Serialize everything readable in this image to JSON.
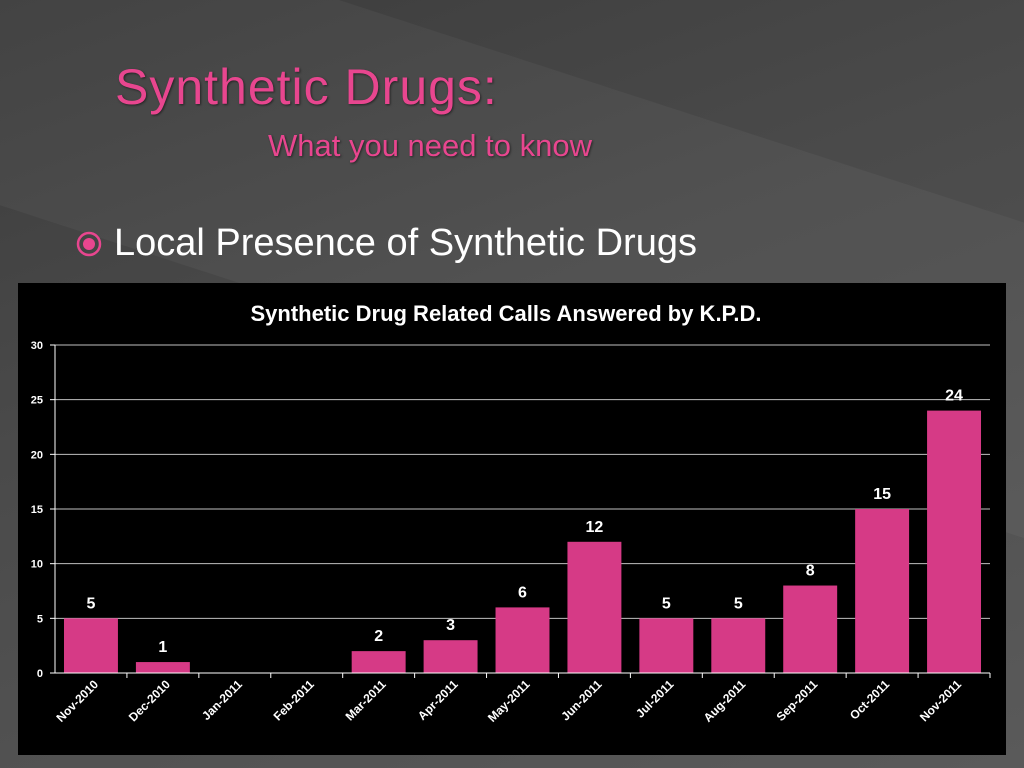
{
  "slide": {
    "title": "Synthetic Drugs:",
    "subtitle": "What you need to know",
    "bullet": "Local Presence of Synthetic Drugs",
    "icons": {
      "bullet": "circle-bullet-icon"
    },
    "colors": {
      "accent": "#e8468f",
      "bar": "#d63a86",
      "chart_bg": "#000000",
      "text": "#ffffff"
    }
  },
  "chart_data": {
    "type": "bar",
    "title": "Synthetic Drug Related Calls Answered by K.P.D.",
    "xlabel": "",
    "ylabel": "",
    "categories": [
      "Nov-2010",
      "Dec-2010",
      "Jan-2011",
      "Feb-2011",
      "Mar-2011",
      "Apr-2011",
      "May-2011",
      "Jun-2011",
      "Jul-2011",
      "Aug-2011",
      "Sep-2011",
      "Oct-2011",
      "Nov-2011"
    ],
    "values": [
      5,
      1,
      0,
      0,
      2,
      3,
      6,
      12,
      5,
      5,
      8,
      15,
      24
    ],
    "value_labels": [
      "5",
      "1",
      "",
      "",
      "2",
      "3",
      "6",
      "12",
      "5",
      "5",
      "8",
      "15",
      "24"
    ],
    "ylim": [
      0,
      30
    ],
    "yticks": [
      0,
      5,
      10,
      15,
      20,
      25,
      30
    ],
    "grid": true,
    "legend": "none"
  }
}
